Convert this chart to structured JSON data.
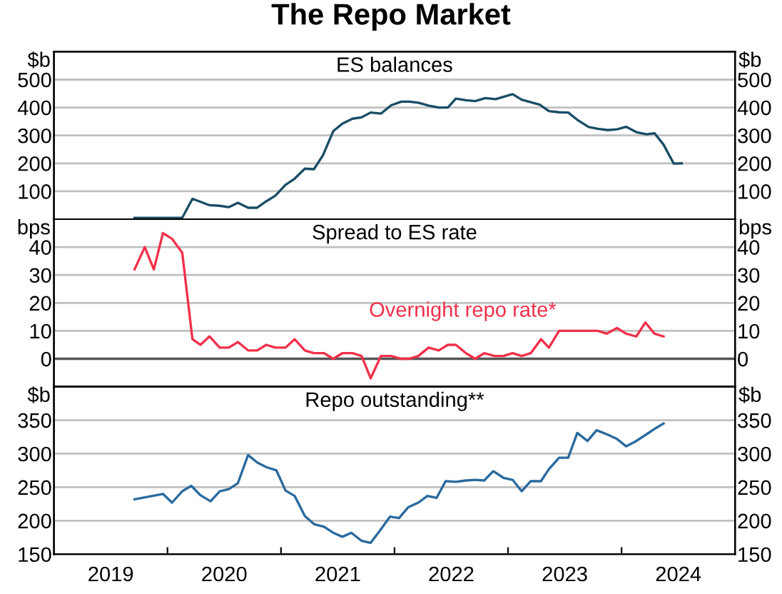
{
  "chart_data": [
    {
      "type": "line",
      "title": "The Repo Market",
      "subtitle": "ES balances",
      "ylabel": "$b",
      "y2label": "$b",
      "xlim": [
        2019,
        2025
      ],
      "ylim": [
        0,
        600
      ],
      "yticks": [
        {
          "value": 100,
          "label": "100"
        },
        {
          "value": 200,
          "label": "200"
        },
        {
          "value": 300,
          "label": "300"
        },
        {
          "value": 400,
          "label": "400"
        },
        {
          "value": 500,
          "label": "500"
        }
      ],
      "y2lim": [
        0,
        600
      ],
      "y2ticks": [
        {
          "value": 100,
          "label": "100"
        },
        {
          "value": 200,
          "label": "200"
        },
        {
          "value": 300,
          "label": "300"
        },
        {
          "value": 400,
          "label": "400"
        },
        {
          "value": 500,
          "label": "500"
        }
      ],
      "grid": "y",
      "tick_labels": "y",
      "series": [
        {
          "color": "#1a4d66",
          "x": [
            2019.71,
            2020.13,
            2020.22,
            2020.28,
            2020.37,
            2020.46,
            2020.54,
            2020.62,
            2020.71,
            2020.79,
            2020.87,
            2020.95,
            2021.04,
            2021.12,
            2021.21,
            2021.29,
            2021.37,
            2021.46,
            2021.54,
            2021.63,
            2021.71,
            2021.79,
            2021.88,
            2021.97,
            2022.06,
            2022.13,
            2022.21,
            2022.3,
            2022.39,
            2022.47,
            2022.54,
            2022.63,
            2022.71,
            2022.8,
            2022.89,
            2023.04,
            2023.12,
            2023.2,
            2023.28,
            2023.36,
            2023.45,
            2023.53,
            2023.61,
            2023.71,
            2023.79,
            2023.88,
            2023.96,
            2024.04,
            2024.13,
            2024.22,
            2024.29,
            2024.37,
            2024.46,
            2024.53
          ],
          "values": [
            5,
            5,
            73,
            64,
            50,
            48,
            43,
            59,
            41,
            41,
            64,
            84,
            123,
            145,
            181,
            179,
            229,
            315,
            342,
            360,
            365,
            382,
            378,
            408,
            421,
            421,
            417,
            407,
            400,
            400,
            432,
            426,
            423,
            434,
            430,
            448,
            428,
            419,
            410,
            387,
            383,
            382,
            356,
            330,
            324,
            319,
            322,
            331,
            312,
            304,
            308,
            267,
            199,
            200
          ]
        }
      ]
    },
    {
      "type": "line",
      "subtitle": "Spread to ES rate",
      "ylabel": "bps",
      "y2label": "bps",
      "xlim": [
        2019,
        2025
      ],
      "ylim": [
        -10,
        50
      ],
      "yticks": [
        0,
        10,
        20,
        30,
        40
      ],
      "y2lim": [
        -10,
        50
      ],
      "y2ticks": [
        0,
        10,
        20,
        30,
        40
      ],
      "grid": "y",
      "tick_labels": "y",
      "ref_lines": [
        {
          "axis": "y",
          "value": 0,
          "color": "#555555"
        }
      ],
      "series": [
        {
          "name": "Overnight repo rate*",
          "color": "#f0304a",
          "x": [
            2019.71,
            2019.8,
            2019.88,
            2019.96,
            2020.04,
            2020.13,
            2020.22,
            2020.29,
            2020.37,
            2020.46,
            2020.54,
            2020.62,
            2020.71,
            2020.79,
            2020.87,
            2020.95,
            2021.04,
            2021.12,
            2021.21,
            2021.29,
            2021.38,
            2021.46,
            2021.54,
            2021.63,
            2021.71,
            2021.79,
            2021.88,
            2021.97,
            2022.06,
            2022.13,
            2022.21,
            2022.3,
            2022.39,
            2022.47,
            2022.54,
            2022.63,
            2022.71,
            2022.79,
            2022.88,
            2022.96,
            2023.04,
            2023.12,
            2023.2,
            2023.29,
            2023.36,
            2023.45,
            2023.53,
            2023.61,
            2023.7,
            2023.79,
            2023.87,
            2023.96,
            2024.04,
            2024.13,
            2024.21,
            2024.29,
            2024.37
          ],
          "values": [
            32,
            40,
            32,
            45,
            43,
            38,
            7,
            5,
            8,
            4,
            4,
            6,
            3,
            3,
            5,
            4,
            4,
            7,
            3,
            2,
            2,
            0,
            2,
            2,
            1,
            -7,
            1,
            1,
            0,
            0,
            1,
            4,
            3,
            5,
            5,
            2,
            0,
            2,
            1,
            1,
            2,
            1,
            2,
            7,
            4,
            10,
            10,
            10,
            10,
            10,
            9,
            11,
            9,
            8,
            13,
            9,
            8
          ]
        }
      ]
    },
    {
      "type": "line",
      "subtitle": "Repo outstanding**",
      "ylabel": "$b",
      "y2label": "$b",
      "xlim": [
        2019,
        2025
      ],
      "xticks": [
        {
          "value": 2020,
          "label": null
        },
        {
          "value": 2021,
          "label": null
        },
        {
          "value": 2022,
          "label": null
        },
        {
          "value": 2023,
          "label": null
        },
        {
          "value": 2024,
          "label": null
        },
        {
          "value": 2019.5,
          "label": "2019"
        },
        {
          "value": 2020.5,
          "label": "2020"
        },
        {
          "value": 2021.5,
          "label": "2021"
        },
        {
          "value": 2022.5,
          "label": "2022"
        },
        {
          "value": 2023.5,
          "label": "2023"
        },
        {
          "value": 2024.5,
          "label": "2024"
        }
      ],
      "ylim": [
        150,
        400
      ],
      "yticks": [
        150,
        200,
        250,
        300,
        350
      ],
      "y2lim": [
        150,
        400
      ],
      "y2ticks": [
        150,
        200,
        250,
        300,
        350
      ],
      "grid": "y",
      "series": [
        {
          "color": "#2a6a9e",
          "x": [
            2019.71,
            2019.96,
            2020.04,
            2020.13,
            2020.21,
            2020.29,
            2020.38,
            2020.46,
            2020.54,
            2020.62,
            2020.71,
            2020.79,
            2020.87,
            2020.96,
            2021.04,
            2021.12,
            2021.21,
            2021.29,
            2021.38,
            2021.46,
            2021.54,
            2021.62,
            2021.71,
            2021.79,
            2021.87,
            2021.96,
            2022.04,
            2022.12,
            2022.21,
            2022.29,
            2022.37,
            2022.45,
            2022.54,
            2022.63,
            2022.71,
            2022.79,
            2022.87,
            2022.96,
            2023.04,
            2023.12,
            2023.2,
            2023.29,
            2023.36,
            2023.45,
            2023.53,
            2023.61,
            2023.7,
            2023.78,
            2023.87,
            2023.96,
            2024.04,
            2024.13,
            2024.22,
            2024.29,
            2024.37
          ],
          "values": [
            232,
            240,
            227,
            244,
            252,
            238,
            229,
            244,
            247,
            256,
            298,
            287,
            280,
            275,
            245,
            237,
            207,
            195,
            191,
            182,
            176,
            182,
            170,
            167,
            185,
            206,
            204,
            220,
            227,
            237,
            234,
            259,
            258,
            260,
            261,
            260,
            274,
            264,
            261,
            244,
            259,
            259,
            277,
            294,
            294,
            331,
            319,
            335,
            329,
            322,
            311,
            319,
            329,
            337,
            345
          ]
        }
      ]
    }
  ]
}
